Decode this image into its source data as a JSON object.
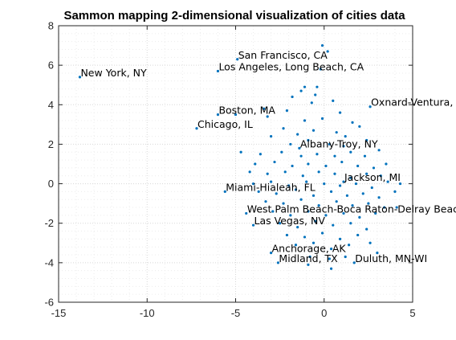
{
  "chart_data": {
    "type": "scatter",
    "title": "Sammon mapping 2-dimensional visualization of cities data",
    "xlabel": "",
    "ylabel": "",
    "xlim": [
      -15,
      5
    ],
    "ylim": [
      -6,
      8
    ],
    "xticks": [
      -15,
      -10,
      -5,
      0,
      5
    ],
    "yticks": [
      -6,
      -4,
      -2,
      0,
      2,
      4,
      6,
      8
    ],
    "grid": true,
    "minor_grid": true,
    "marker_color": "#0072bd",
    "labeled_points": [
      {
        "label": "San Francisco, CA",
        "x": -4.9,
        "y": 6.3
      },
      {
        "label": "Los Angeles, Long Beach, CA",
        "x": -6.0,
        "y": 5.7
      },
      {
        "label": "New York, NY",
        "x": -13.8,
        "y": 5.4
      },
      {
        "label": "Oxnard-Ventura, CA",
        "x": 2.6,
        "y": 3.9
      },
      {
        "label": "Boston, MA",
        "x": -6.0,
        "y": 3.5
      },
      {
        "label": "Chicago, IL",
        "x": -7.2,
        "y": 2.8
      },
      {
        "label": "Albany-Troy, NY",
        "x": -1.4,
        "y": 1.8
      },
      {
        "label": "Jackson, MI",
        "x": 1.1,
        "y": 0.1
      },
      {
        "label": "Miami-Hialeah, FL",
        "x": -5.6,
        "y": -0.4
      },
      {
        "label": "West Palm Beach-Boca Raton-Delray Beach, FL",
        "x": -4.4,
        "y": -1.5
      },
      {
        "label": "Las Vegas, NV",
        "x": -4.0,
        "y": -2.1
      },
      {
        "label": "Anchorage, AK",
        "x": -3.0,
        "y": -3.5
      },
      {
        "label": "Midland, TX",
        "x": -2.6,
        "y": -4.0
      },
      {
        "label": "Duluth, MN-WI",
        "x": 1.7,
        "y": -4.0
      }
    ],
    "points": [
      [
        -0.1,
        7.0
      ],
      [
        0.2,
        6.7
      ],
      [
        -0.2,
        5.8
      ],
      [
        -1.1,
        4.9
      ],
      [
        -1.3,
        4.7
      ],
      [
        -0.4,
        4.9
      ],
      [
        -0.5,
        4.5
      ],
      [
        -1.8,
        4.4
      ],
      [
        -0.7,
        4.1
      ],
      [
        0.5,
        4.2
      ],
      [
        -3.4,
        3.8
      ],
      [
        -2.1,
        3.7
      ],
      [
        -3.2,
        3.4
      ],
      [
        -5.0,
        3.5
      ],
      [
        -1.1,
        3.2
      ],
      [
        -0.1,
        3.3
      ],
      [
        0.9,
        3.6
      ],
      [
        1.6,
        3.1
      ],
      [
        -2.3,
        2.8
      ],
      [
        -1.5,
        2.5
      ],
      [
        -0.6,
        2.7
      ],
      [
        0.7,
        2.6
      ],
      [
        1.2,
        2.4
      ],
      [
        2.0,
        2.9
      ],
      [
        -3.0,
        2.4
      ],
      [
        -1.9,
        2.0
      ],
      [
        -0.9,
        2.2
      ],
      [
        0.3,
        2.0
      ],
      [
        1.1,
        1.9
      ],
      [
        2.4,
        2.2
      ],
      [
        -4.7,
        1.6
      ],
      [
        -3.6,
        1.5
      ],
      [
        -2.4,
        1.6
      ],
      [
        -1.3,
        1.4
      ],
      [
        -0.4,
        1.5
      ],
      [
        0.6,
        1.4
      ],
      [
        1.5,
        1.6
      ],
      [
        2.3,
        1.4
      ],
      [
        3.1,
        1.7
      ],
      [
        -3.9,
        1.0
      ],
      [
        -2.8,
        1.1
      ],
      [
        -1.8,
        0.9
      ],
      [
        -0.9,
        1.0
      ],
      [
        0.1,
        0.9
      ],
      [
        1.0,
        1.1
      ],
      [
        1.9,
        0.9
      ],
      [
        2.8,
        0.8
      ],
      [
        3.5,
        1.0
      ],
      [
        -4.2,
        0.6
      ],
      [
        -3.2,
        0.5
      ],
      [
        -2.2,
        0.6
      ],
      [
        -1.2,
        0.4
      ],
      [
        -0.3,
        0.6
      ],
      [
        0.6,
        0.5
      ],
      [
        1.5,
        0.3
      ],
      [
        2.4,
        0.5
      ],
      [
        3.2,
        0.4
      ],
      [
        -4.0,
        0.0
      ],
      [
        -3.0,
        0.1
      ],
      [
        -2.0,
        -0.1
      ],
      [
        -1.0,
        0.1
      ],
      [
        0.0,
        0.0
      ],
      [
        0.9,
        -0.1
      ],
      [
        1.8,
        0.0
      ],
      [
        2.7,
        -0.2
      ],
      [
        3.6,
        0.1
      ],
      [
        4.3,
        0.0
      ],
      [
        -3.7,
        -0.4
      ],
      [
        -2.7,
        -0.5
      ],
      [
        -1.6,
        -0.3
      ],
      [
        -0.6,
        -0.6
      ],
      [
        0.4,
        -0.4
      ],
      [
        1.3,
        -0.6
      ],
      [
        2.2,
        -0.5
      ],
      [
        3.1,
        -0.7
      ],
      [
        4.0,
        -0.4
      ],
      [
        -3.3,
        -0.9
      ],
      [
        -2.3,
        -1.0
      ],
      [
        -1.3,
        -0.8
      ],
      [
        -0.3,
        -1.1
      ],
      [
        0.7,
        -0.9
      ],
      [
        1.6,
        -1.1
      ],
      [
        2.5,
        -1.0
      ],
      [
        3.4,
        -1.2
      ],
      [
        -2.9,
        -1.4
      ],
      [
        -1.9,
        -1.6
      ],
      [
        -0.9,
        -1.4
      ],
      [
        0.1,
        -1.6
      ],
      [
        1.1,
        -1.5
      ],
      [
        2.0,
        -1.7
      ],
      [
        2.9,
        -1.5
      ],
      [
        -2.5,
        -2.0
      ],
      [
        -1.5,
        -2.2
      ],
      [
        -0.5,
        -1.9
      ],
      [
        0.5,
        -2.1
      ],
      [
        1.5,
        -2.0
      ],
      [
        2.4,
        -2.3
      ],
      [
        -2.1,
        -2.6
      ],
      [
        -1.1,
        -2.7
      ],
      [
        -0.1,
        -2.5
      ],
      [
        0.9,
        -2.8
      ],
      [
        1.9,
        -2.6
      ],
      [
        -1.6,
        -3.1
      ],
      [
        -0.6,
        -3.0
      ],
      [
        0.4,
        -3.3
      ],
      [
        1.4,
        -3.1
      ],
      [
        2.6,
        -3.0
      ],
      [
        -0.8,
        -3.7
      ],
      [
        0.3,
        -3.8
      ],
      [
        1.2,
        -3.7
      ],
      [
        3.0,
        -3.5
      ],
      [
        0.4,
        -4.3
      ],
      [
        -0.9,
        -4.1
      ],
      [
        4.1,
        -1.2
      ]
    ]
  }
}
